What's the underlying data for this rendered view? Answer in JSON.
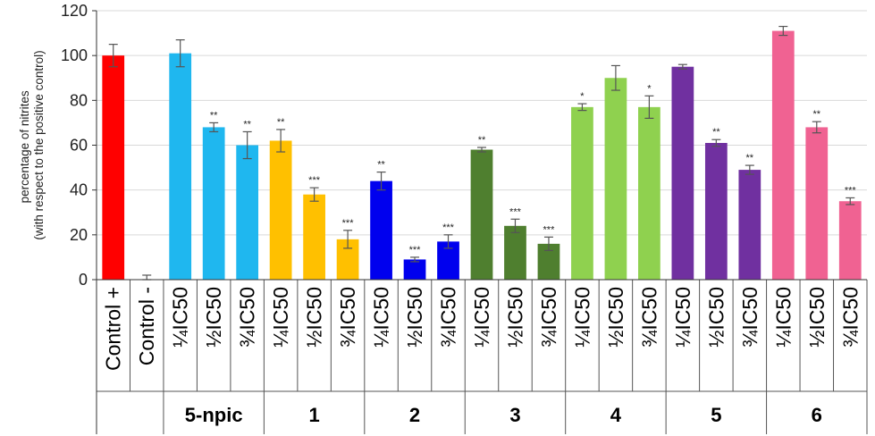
{
  "chart_data": {
    "type": "bar",
    "ylabel_lines": [
      "percentage of nitrites",
      "(with respect to the positive control)"
    ],
    "ylim": [
      0,
      120
    ],
    "yticks": [
      0,
      20,
      40,
      60,
      80,
      100,
      120
    ],
    "grid": true,
    "categories": [
      "Control +",
      "Control -",
      "¼IC50",
      "½IC50",
      "¾IC50",
      "¼IC50",
      "½IC50",
      "¾IC50",
      "¼IC50",
      "½IC50",
      "¾IC50",
      "¼IC50",
      "½IC50",
      "¾IC50",
      "¼IC50",
      "½IC50",
      "¾IC50",
      "¼IC50",
      "½IC50",
      "¾IC50",
      "¼IC50",
      "½IC50",
      "¾IC50"
    ],
    "groups": [
      {
        "label": "",
        "start": 0,
        "count": 2
      },
      {
        "label": "5-npic",
        "start": 2,
        "count": 3
      },
      {
        "label": "1",
        "start": 5,
        "count": 3
      },
      {
        "label": "2",
        "start": 8,
        "count": 3
      },
      {
        "label": "3",
        "start": 11,
        "count": 3
      },
      {
        "label": "4",
        "start": 14,
        "count": 3
      },
      {
        "label": "5",
        "start": 17,
        "count": 3
      },
      {
        "label": "6",
        "start": 20,
        "count": 3
      }
    ],
    "values": [
      100,
      0,
      101,
      68,
      60,
      62,
      38,
      18,
      44,
      9,
      17,
      58,
      24,
      16,
      77,
      90,
      77,
      95,
      61,
      49,
      111,
      68,
      35
    ],
    "errors": [
      5,
      2,
      6,
      2,
      6,
      5,
      3,
      4,
      4,
      1,
      3,
      1,
      3,
      3,
      1.5,
      5.5,
      5,
      1,
      1.5,
      2,
      2,
      2.5,
      1.5
    ],
    "significance": [
      "",
      "",
      "",
      "**",
      "**",
      "**",
      "***",
      "***",
      "**",
      "***",
      "***",
      "**",
      "***",
      "***",
      "*",
      "",
      "*",
      "",
      "**",
      "**",
      "",
      "**",
      "***"
    ],
    "colors": [
      "#ff0000",
      "#ff0000",
      "#1fb7ef",
      "#1fb7ef",
      "#1fb7ef",
      "#ffc000",
      "#ffc000",
      "#ffc000",
      "#0000ee",
      "#0000ee",
      "#0000ee",
      "#4f7f2f",
      "#4f7f2f",
      "#4f7f2f",
      "#8fd14f",
      "#8fd14f",
      "#8fd14f",
      "#7030a0",
      "#7030a0",
      "#7030a0",
      "#f06292",
      "#f06292",
      "#f06292"
    ]
  }
}
